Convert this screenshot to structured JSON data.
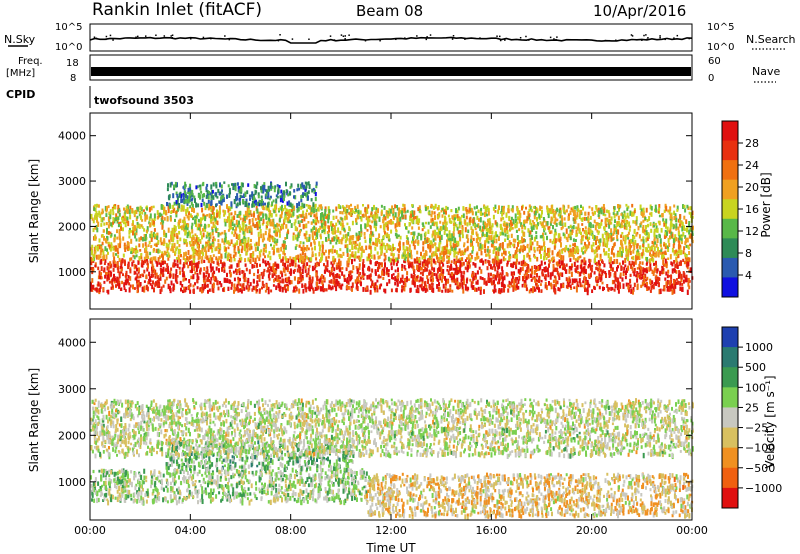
{
  "header": {
    "station": "Rankin Inlet (fitACF)",
    "beam": "Beam 08",
    "date": "10/Apr/2016"
  },
  "top_panels": {
    "nsky_label": "N.Sky",
    "nsky_tick_top": "10^5",
    "nsky_tick_bottom": "10^0",
    "nsearch_label": "N.Search",
    "freq_label": "Freq.",
    "freq_unit": "[MHz]",
    "freq_tick_top": "18",
    "freq_tick_bottom": "8",
    "nave_label": "Nave",
    "nave_tick_top": "60",
    "nave_tick_bottom": "0",
    "cpid_label": "CPID",
    "cpid_value": "twofsound 3503"
  },
  "colors": {
    "power_scale": [
      "#1010e0",
      "#2a5ab0",
      "#2e8b57",
      "#58b848",
      "#c8d420",
      "#f0a020",
      "#f07010",
      "#e83010",
      "#e01010"
    ],
    "velocity_scale": [
      "#e01010",
      "#f06010",
      "#f09020",
      "#d8c060",
      "#c8c8c0",
      "#7ad050",
      "#3a9a50",
      "#2a7a70",
      "#1e40b0"
    ]
  },
  "chart_data": [
    {
      "type": "heatmap",
      "title": "Power",
      "xlabel": "",
      "ylabel": "Slant Range [km]",
      "x_ticks": [
        "00:00",
        "04:00",
        "08:00",
        "12:00",
        "16:00",
        "20:00",
        "00:00"
      ],
      "y_ticks": [
        1000,
        2000,
        3000,
        4000
      ],
      "ylim": [
        180,
        4500
      ],
      "colorbar": {
        "label": "Power [dB]",
        "ticks": [
          "28",
          "24",
          "20",
          "16",
          "12",
          "8",
          "4"
        ],
        "range": [
          0,
          30
        ]
      },
      "bands": [
        {
          "range_km": [
            600,
            1300
          ],
          "hours": [
            0.0,
            24.0
          ],
          "value": 26
        },
        {
          "range_km": [
            1300,
            1700
          ],
          "hours": [
            0.0,
            24.0
          ],
          "value": 18
        },
        {
          "range_km": [
            1700,
            2500
          ],
          "hours": [
            0.0,
            24.0
          ],
          "value": 16
        },
        {
          "range_km": [
            2500,
            3000
          ],
          "hours": [
            3.0,
            9.0
          ],
          "value": 8
        }
      ]
    },
    {
      "type": "heatmap",
      "title": "Velocity",
      "xlabel": "Time UT",
      "ylabel": "Slant Range [km]",
      "x_ticks": [
        "00:00",
        "04:00",
        "08:00",
        "12:00",
        "16:00",
        "20:00",
        "00:00"
      ],
      "y_ticks": [
        1000,
        2000,
        3000,
        4000
      ],
      "ylim": [
        180,
        4500
      ],
      "colorbar": {
        "label": "Velocity [m s⁻¹]",
        "ticks": [
          "1000",
          "500",
          "100",
          "25",
          "−25",
          "−100",
          "−500",
          "−1000"
        ],
        "range": [
          -1200,
          1200
        ]
      },
      "bands": [
        {
          "range_km": [
            600,
            1300
          ],
          "hours": [
            0.0,
            11.0
          ],
          "value": 150
        },
        {
          "range_km": [
            1300,
            1900
          ],
          "hours": [
            3.0,
            10.5
          ],
          "value": 300
        },
        {
          "range_km": [
            1600,
            2800
          ],
          "hours": [
            0.0,
            24.0
          ],
          "value": 0
        },
        {
          "range_km": [
            300,
            1200
          ],
          "hours": [
            11.0,
            24.0
          ],
          "value": -250
        }
      ]
    }
  ]
}
